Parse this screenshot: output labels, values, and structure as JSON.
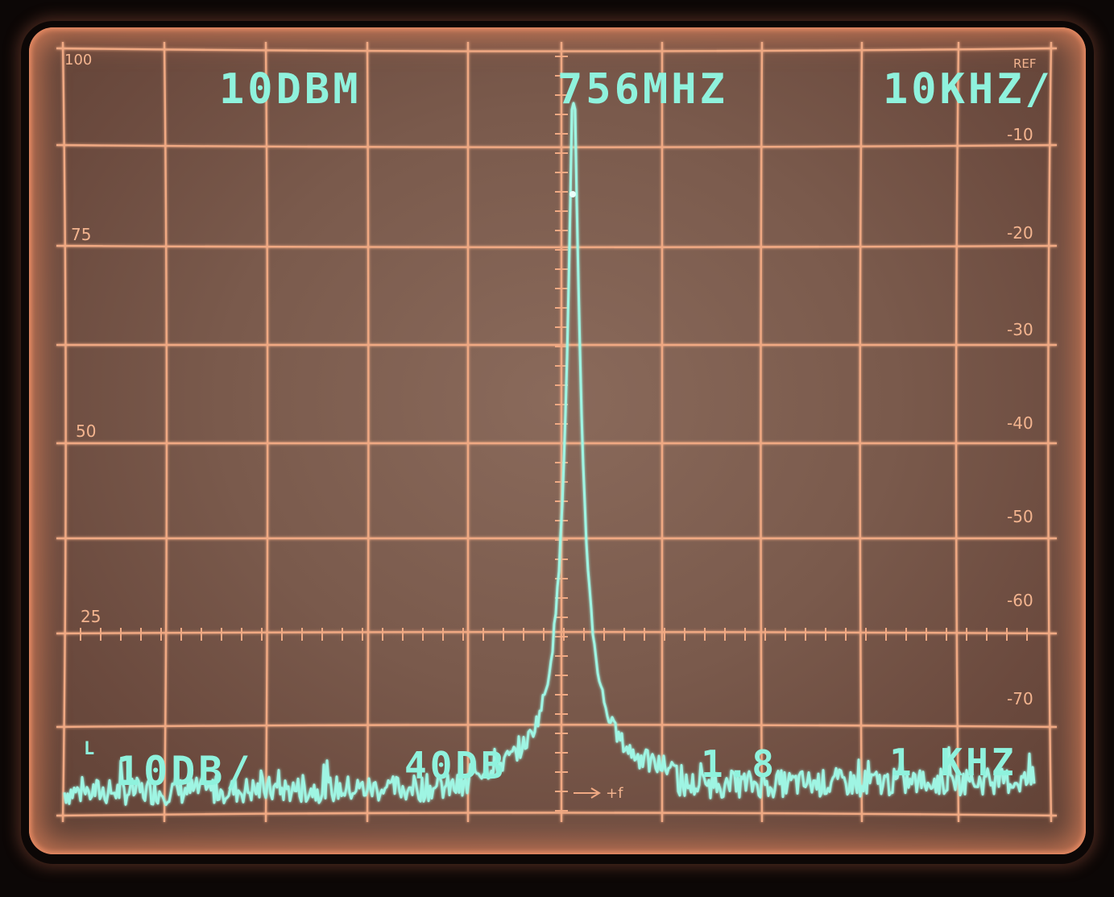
{
  "display": {
    "ref_level": "10DBM",
    "center_frequency": "756MHZ",
    "span_per_div": "10KHZ/",
    "scale_per_div": "10DB/",
    "bottom_left_value": "40DB",
    "bottom_mid_value": "1.8",
    "resolution_bw": "1 KHZ",
    "bottom_prefix": "L",
    "freq_arrow_label": "+f"
  },
  "left_scale": {
    "top": "100",
    "mark_75": "75",
    "mark_50": "50",
    "mark_25": "25"
  },
  "right_scale": {
    "ref": "REF",
    "labels": [
      "-10",
      "-20",
      "-30",
      "-40",
      "-50",
      "-60",
      "-70"
    ]
  },
  "colors": {
    "trace": "#9ff5e3",
    "graticule": "#f0a983",
    "readout": "#8ff2dd"
  }
}
